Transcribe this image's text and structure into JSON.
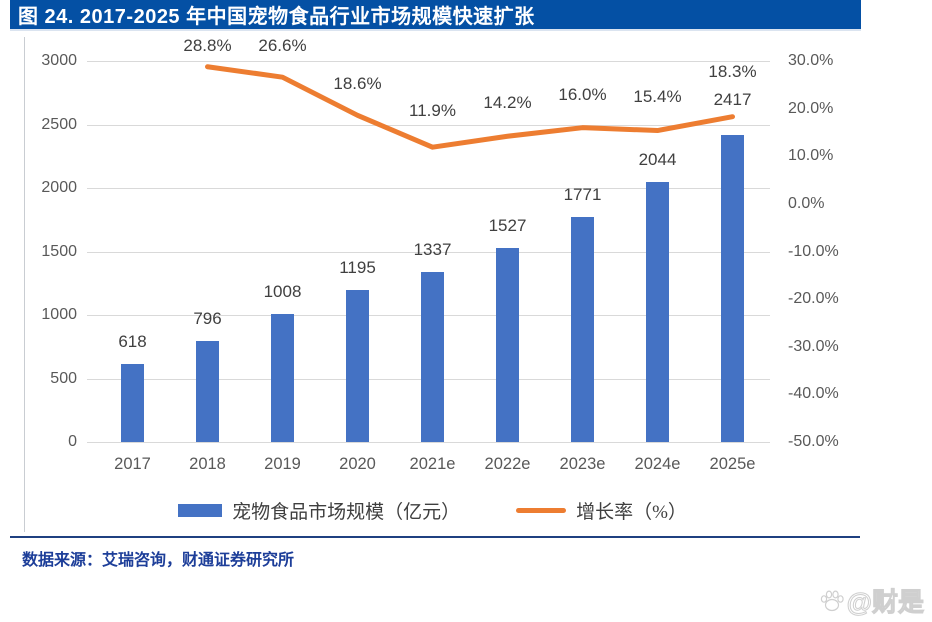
{
  "title": "图 24. 2017-2025 年中国宠物食品行业市场规模快速扩张",
  "colors": {
    "title_bar_bg": "#0450A4",
    "bar": "#4472C4",
    "line": "#ED7D31",
    "gridline": "#d9d9d9",
    "axis_text": "#595959",
    "data_label": "#404040",
    "footer_blue": "#1D3E99"
  },
  "chart_data": {
    "type": "bar",
    "title": "2017-2025 年中国宠物食品行业市场规模快速扩张",
    "categories": [
      "2017",
      "2018",
      "2019",
      "2020",
      "2021e",
      "2022e",
      "2023e",
      "2024e",
      "2025e"
    ],
    "series": [
      {
        "name": "宠物食品市场规模（亿元）",
        "type": "bar",
        "axis": "left",
        "values": [
          618,
          796,
          1008,
          1195,
          1337,
          1527,
          1771,
          2044,
          2417
        ],
        "labels": [
          "618",
          "796",
          "1008",
          "1195",
          "1337",
          "1527",
          "1771",
          "2044",
          "2417"
        ]
      },
      {
        "name": "增长率（%）",
        "type": "line",
        "axis": "right",
        "values": [
          null,
          28.8,
          26.6,
          18.6,
          11.9,
          14.2,
          16.0,
          15.4,
          18.3
        ],
        "labels": [
          "",
          "28.8%",
          "26.6%",
          "18.6%",
          "11.9%",
          "14.2%",
          "16.0%",
          "15.4%",
          "18.3%"
        ]
      }
    ],
    "left_axis": {
      "min": 0,
      "max": 3000,
      "tick_labels": [
        "3000",
        "2500",
        "2000",
        "1500",
        "1000",
        "500",
        "0"
      ]
    },
    "right_axis": {
      "min": -50,
      "max": 30,
      "tick_labels": [
        "30.0%",
        "20.0%",
        "10.0%",
        "0.0%",
        "-10.0%",
        "-20.0%",
        "-30.0%",
        "-40.0%",
        "-50.0%"
      ]
    },
    "grid": true,
    "legend_position": "bottom"
  },
  "legend": {
    "bar_label": "宠物食品市场规模（亿元）",
    "line_label": "增长率（%）"
  },
  "footer": {
    "source": "数据来源：艾瑞咨询，财通证券研究所"
  },
  "watermark": {
    "icon": "paw-icon",
    "text": "@财是"
  }
}
